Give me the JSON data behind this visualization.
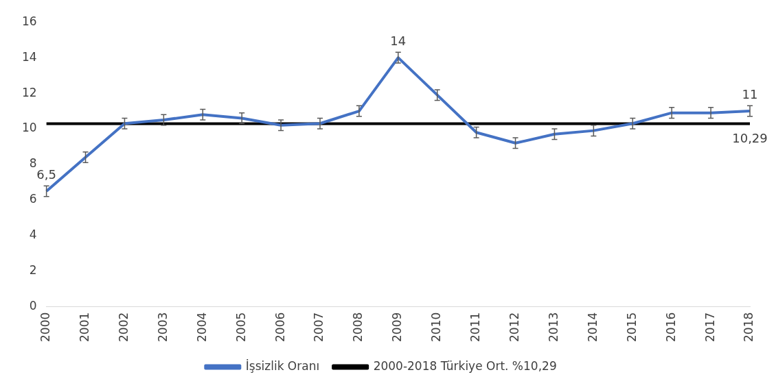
{
  "chart_data": {
    "type": "line",
    "categories": [
      "2000",
      "2001",
      "2002",
      "2003",
      "2004",
      "2005",
      "2006",
      "2007",
      "2008",
      "2009",
      "2010",
      "2011",
      "2012",
      "2013",
      "2014",
      "2015",
      "2016",
      "2017",
      "2018"
    ],
    "series": [
      {
        "name": "İşsizlik Oranı",
        "color": "#4472c4",
        "values": [
          6.5,
          8.4,
          10.3,
          10.5,
          10.8,
          10.6,
          10.2,
          10.3,
          11.0,
          14.0,
          11.9,
          9.8,
          9.2,
          9.7,
          9.9,
          10.3,
          10.9,
          10.9,
          11.0
        ],
        "errors": [
          0.3,
          0.3,
          0.3,
          0.3,
          0.3,
          0.3,
          0.3,
          0.3,
          0.3,
          0.3,
          0.3,
          0.3,
          0.3,
          0.3,
          0.3,
          0.3,
          0.3,
          0.3,
          0.3
        ],
        "value_labels": [
          "6,5",
          null,
          null,
          null,
          null,
          null,
          null,
          null,
          null,
          "14",
          null,
          null,
          null,
          null,
          null,
          null,
          null,
          null,
          "11"
        ]
      },
      {
        "name": "2000-2018 Türkiye Ort. %10,29",
        "color": "#000000",
        "values": [
          10.29,
          10.29,
          10.29,
          10.29,
          10.29,
          10.29,
          10.29,
          10.29,
          10.29,
          10.29,
          10.29,
          10.29,
          10.29,
          10.29,
          10.29,
          10.29,
          10.29,
          10.29,
          10.29
        ],
        "value_labels": [
          null,
          null,
          null,
          null,
          null,
          null,
          null,
          null,
          null,
          null,
          null,
          null,
          null,
          null,
          null,
          null,
          null,
          null,
          "10,29"
        ]
      }
    ],
    "ylim": [
      0,
      16
    ],
    "yticks": [
      0,
      2,
      4,
      6,
      8,
      10,
      12,
      14,
      16
    ],
    "grid": false,
    "legend": "bottom",
    "marker": "none",
    "line_style": "solid"
  }
}
